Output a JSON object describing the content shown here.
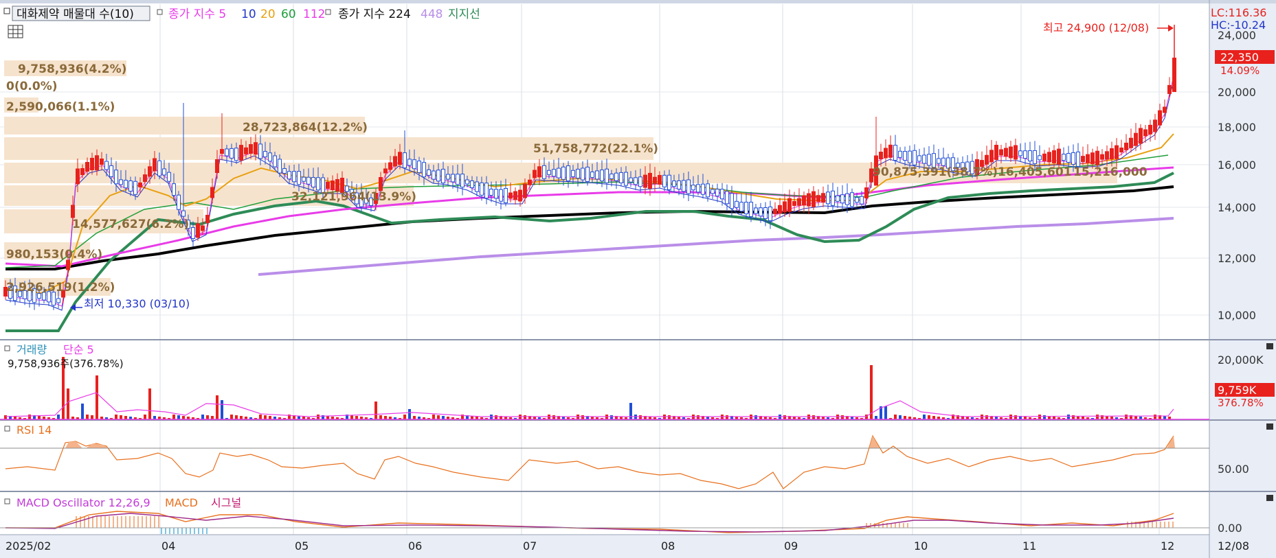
{
  "top_legend": {
    "toggle_icon": "square-toggle-icon",
    "stock_label": "대화제약 매물대 수(10)",
    "ma_label": "종가 지수 5",
    "ma_values": [
      "10",
      "20",
      "60",
      "112"
    ],
    "ma224_label": "종가 지수 224",
    "ma448_value": "448",
    "support_label": "지지선"
  },
  "scale_info": {
    "lc": "LC:116.36",
    "hc": "HC:-10.24"
  },
  "price_badge": {
    "price": "22,350",
    "change": "14.09%"
  },
  "price_axis_ticks": [
    "24,000",
    "20,000",
    "18,000",
    "16,000",
    "14,000",
    "12,000",
    "10,000"
  ],
  "annotations": {
    "high": "최고 24,900 (12/08)",
    "low": "최저 10,330 (03/10)"
  },
  "volume_profile_labels": [
    "9,758,936(4.2%)",
    "0(0.0%)",
    "2,590,066(1.1%)",
    "28,723,864(12.2%)",
    "51,758,772(22.1%)",
    "90,875,391(38.7%)",
    "16,405,601",
    "15,216,000",
    "32,121,964(13.9%)",
    "14,577,627(6.2%)",
    "980,153(0.4%)",
    "2,926,519(1.2%)"
  ],
  "volume_panel": {
    "title": "거래량",
    "ma": "단순 5",
    "info": "9,758,936주(376.78%)",
    "axis_tick": "20,000K",
    "badge_value": "9,759K",
    "badge_pct": "376.78%"
  },
  "rsi_panel": {
    "title": "RSI 14",
    "axis_tick": "50.00"
  },
  "macd_panel": {
    "title": "MACD Oscillator 12,26,9",
    "macd": "MACD",
    "signal": "시그널",
    "axis_tick": "0.00"
  },
  "time_axis": {
    "labels": [
      "2025/02",
      "04",
      "05",
      "06",
      "07",
      "08",
      "09",
      "10",
      "11",
      "12"
    ],
    "right_label": "12/08"
  },
  "colors": {
    "up": "#e8211d",
    "down": "#1f4fd6",
    "ma5": "#e83be8",
    "ma10": "#2235c8",
    "ma20": "#e8a010",
    "ma60": "#1e9e3a",
    "ma112": "#e83be8",
    "ma224": "#000000",
    "ma448": "#b98ee8",
    "support": "#2e8b57",
    "profile": "#f6e3cd",
    "axis_bg": "#e8edf6"
  },
  "chart_data": {
    "type": "candlestick",
    "price_range": [
      9000,
      25500
    ],
    "price_ticks": [
      10000,
      12000,
      14000,
      16000,
      18000,
      20000,
      24000
    ],
    "x_labels": [
      "2025/02",
      "04",
      "05",
      "06",
      "07",
      "08",
      "09",
      "10",
      "11",
      "12"
    ],
    "high": {
      "value": 24900,
      "date": "12/08"
    },
    "low": {
      "value": 10330,
      "date": "03/10"
    },
    "last_close": 22350,
    "change_pct": 14.09,
    "rsi_ticks": [
      50
    ],
    "macd_ticks": [
      0
    ],
    "volume_ticks_k": [
      20000
    ],
    "last_volume": 9758936
  }
}
